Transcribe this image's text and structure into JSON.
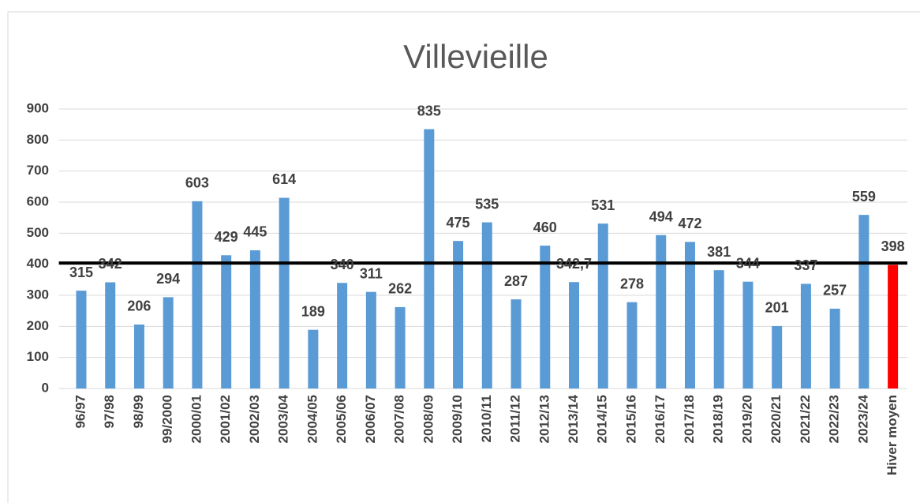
{
  "chart_data": {
    "type": "bar",
    "title": "Villevieille",
    "categories": [
      "96/97",
      "97/98",
      "98/99",
      "99/2000",
      "2000/01",
      "2001/02",
      "2002/03",
      "2003/04",
      "2004/05",
      "2005/06",
      "2006/07",
      "2007/08",
      "2008/09",
      "2009/10",
      "2010/11",
      "2011/12",
      "2012/13",
      "2013/14",
      "2014/15",
      "2015/16",
      "2016/17",
      "2017/18",
      "2018/19",
      "2019/20",
      "2020/21",
      "2021/22",
      "2022/23",
      "2023/24",
      "Hiver moyen"
    ],
    "values": [
      315,
      342,
      206,
      294,
      603,
      429,
      445,
      614,
      189,
      340,
      311,
      262,
      835,
      475,
      535,
      287,
      460,
      342.7,
      531,
      278,
      494,
      472,
      381,
      344,
      201,
      337,
      257,
      559,
      398
    ],
    "value_labels": [
      "315",
      "342",
      "206",
      "294",
      "603",
      "429",
      "445",
      "614",
      "189",
      "340",
      "311",
      "262",
      "835",
      "475",
      "535",
      "287",
      "460",
      "342,7",
      "531",
      "278",
      "494",
      "472",
      "381",
      "344",
      "201",
      "337",
      "257",
      "559",
      "398"
    ],
    "colors": [
      "#5b9bd5",
      "#5b9bd5",
      "#5b9bd5",
      "#5b9bd5",
      "#5b9bd5",
      "#5b9bd5",
      "#5b9bd5",
      "#5b9bd5",
      "#5b9bd5",
      "#5b9bd5",
      "#5b9bd5",
      "#5b9bd5",
      "#5b9bd5",
      "#5b9bd5",
      "#5b9bd5",
      "#5b9bd5",
      "#5b9bd5",
      "#5b9bd5",
      "#5b9bd5",
      "#5b9bd5",
      "#5b9bd5",
      "#5b9bd5",
      "#5b9bd5",
      "#5b9bd5",
      "#5b9bd5",
      "#5b9bd5",
      "#5b9bd5",
      "#5b9bd5",
      "#ff0000"
    ],
    "reference_line": {
      "value": 404,
      "color": "#000000"
    },
    "ylim": [
      0,
      900
    ],
    "yticks": [
      0,
      100,
      200,
      300,
      400,
      500,
      600,
      700,
      800,
      900
    ],
    "grid": true
  }
}
